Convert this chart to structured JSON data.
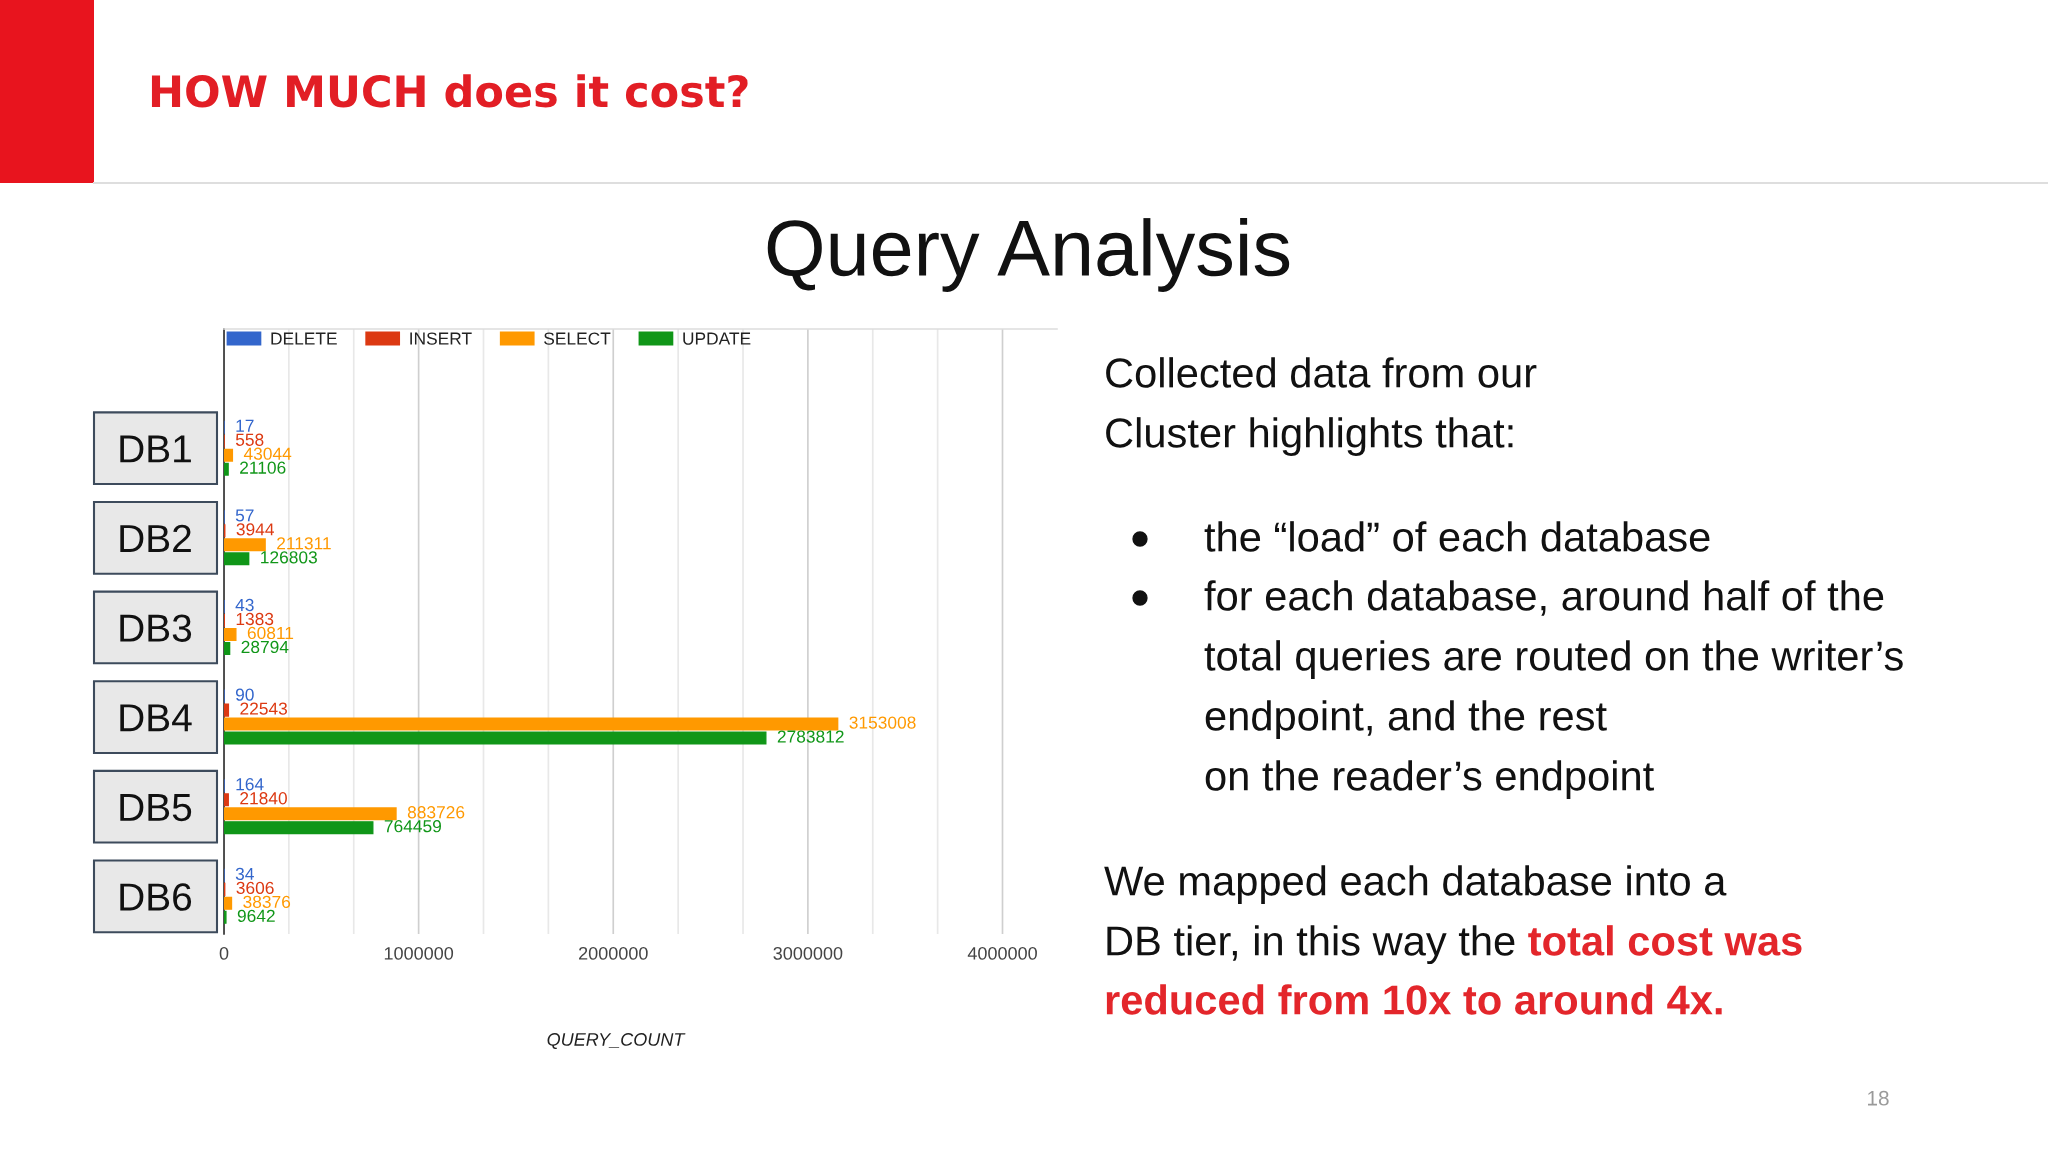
{
  "chart_data": {
    "type": "bar",
    "orientation": "horizontal",
    "title": "HOW MUCH does it cost?",
    "subtitle": "Query Analysis",
    "xlabel": "QUERY_COUNT",
    "categories": [
      "DB1",
      "DB2",
      "DB3",
      "DB4",
      "DB5",
      "DB6"
    ],
    "series": [
      {
        "name": "DELETE",
        "color": "#3366cc",
        "values": [
          17,
          57,
          43,
          90,
          164,
          34
        ]
      },
      {
        "name": "INSERT",
        "color": "#dc3912",
        "values": [
          558,
          3944,
          1383,
          22543,
          21840,
          3606
        ]
      },
      {
        "name": "SELECT",
        "color": "#ff9900",
        "values": [
          43044,
          211311,
          60811,
          3153008,
          883726,
          38376
        ]
      },
      {
        "name": "UPDATE",
        "color": "#109618",
        "values": [
          21106,
          126803,
          28794,
          2783812,
          764459,
          9642
        ]
      }
    ],
    "xlim": [
      0,
      4280000
    ],
    "xticks": [
      0,
      {
        "value": 333333,
        "label": null
      },
      {
        "value": 666667,
        "label": null
      },
      1000000,
      {
        "value": 1333333,
        "label": null
      },
      {
        "value": 1666667,
        "label": null
      },
      2000000,
      {
        "value": 2333333,
        "label": null
      },
      {
        "value": 2666667,
        "label": null
      },
      3000000,
      {
        "value": 3333333,
        "label": null
      },
      {
        "value": 3666667,
        "label": null
      },
      4000000
    ],
    "grid": "x",
    "legend": "top left",
    "data_labels": true,
    "annotations": [
      "Collected data from our",
      "Cluster highlights that:",
      "the “load” of each database",
      "for each database, around half of the",
      "total queries are routed on the writer’s",
      "endpoint, and the rest",
      "on the reader’s endpoint",
      "We mapped each database into a",
      "DB tier, in this way the",
      "total cost was",
      "reduced from 10x to around 4x.",
      "18"
    ]
  }
}
